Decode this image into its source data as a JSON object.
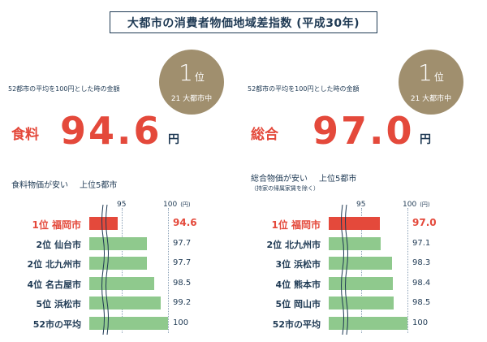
{
  "title": "大都市の消費者物価地域差指数 (平成30年)",
  "panels": [
    {
      "note": "52都市の平均を100円とした時の金額",
      "rank": "1",
      "rank_suffix": "位",
      "rank_sub": "21 大都市中",
      "category": "食料",
      "big_value": "94.6",
      "unit": "円",
      "chart_heading_a": "食料物価が安い",
      "chart_heading_b": "上位5都市",
      "chart_note": "",
      "tick_95": "95",
      "tick_100": "100",
      "tick_unit": "(円)",
      "rows": [
        {
          "label": "1位 福岡市",
          "value": "94.6",
          "top": true
        },
        {
          "label": "2位 仙台市",
          "value": "97.7"
        },
        {
          "label": "2位 北九州市",
          "value": "97.7"
        },
        {
          "label": "4位 名古屋市",
          "value": "98.5"
        },
        {
          "label": "5位 浜松市",
          "value": "99.2"
        },
        {
          "label": "52市の平均",
          "value": "100"
        }
      ]
    },
    {
      "note": "52都市の平均を100円とした時の金額",
      "rank": "1",
      "rank_suffix": "位",
      "rank_sub": "21 大都市中",
      "category": "総合",
      "big_value": "97.0",
      "unit": "円",
      "chart_heading_a": "総合物価が安い",
      "chart_heading_b": "上位5都市",
      "chart_note": "（持家の帰属家賃を除く）",
      "tick_95": "95",
      "tick_100": "100",
      "tick_unit": "(円)",
      "rows": [
        {
          "label": "1位 福岡市",
          "value": "97.0",
          "top": true
        },
        {
          "label": "2位 北九州市",
          "value": "97.1"
        },
        {
          "label": "3位 浜松市",
          "value": "98.3"
        },
        {
          "label": "4位 熊本市",
          "value": "98.4"
        },
        {
          "label": "5位 岡山市",
          "value": "98.5"
        },
        {
          "label": "52市の平均",
          "value": "100"
        }
      ]
    }
  ],
  "chart_data": [
    {
      "type": "bar",
      "categories": [
        "1位 福岡市",
        "2位 仙台市",
        "2位 北九州市",
        "4位 名古屋市",
        "5位 浜松市",
        "52市の平均"
      ],
      "values": [
        94.6,
        97.7,
        97.7,
        98.5,
        99.2,
        100
      ],
      "title": "食料物価が安い 上位5都市",
      "xlabel": "(円)",
      "ylabel": "",
      "xlim": [
        92,
        100
      ],
      "ticks": [
        95,
        100
      ],
      "colors": {
        "highlight": "#e4493b",
        "normal": "#8fc98d"
      }
    },
    {
      "type": "bar",
      "categories": [
        "1位 福岡市",
        "2位 北九州市",
        "3位 浜松市",
        "4位 熊本市",
        "5位 岡山市",
        "52市の平均"
      ],
      "values": [
        97.0,
        97.1,
        98.3,
        98.4,
        98.5,
        100
      ],
      "title": "総合物価が安い 上位5都市",
      "xlabel": "(円)",
      "ylabel": "",
      "xlim": [
        92,
        100
      ],
      "ticks": [
        95,
        100
      ],
      "colors": {
        "highlight": "#e4493b",
        "normal": "#8fc98d"
      }
    }
  ],
  "colors": {
    "accent": "#e4493b",
    "navy": "#1f3a54",
    "gold": "#a08f6e",
    "bar": "#8fc98d"
  }
}
